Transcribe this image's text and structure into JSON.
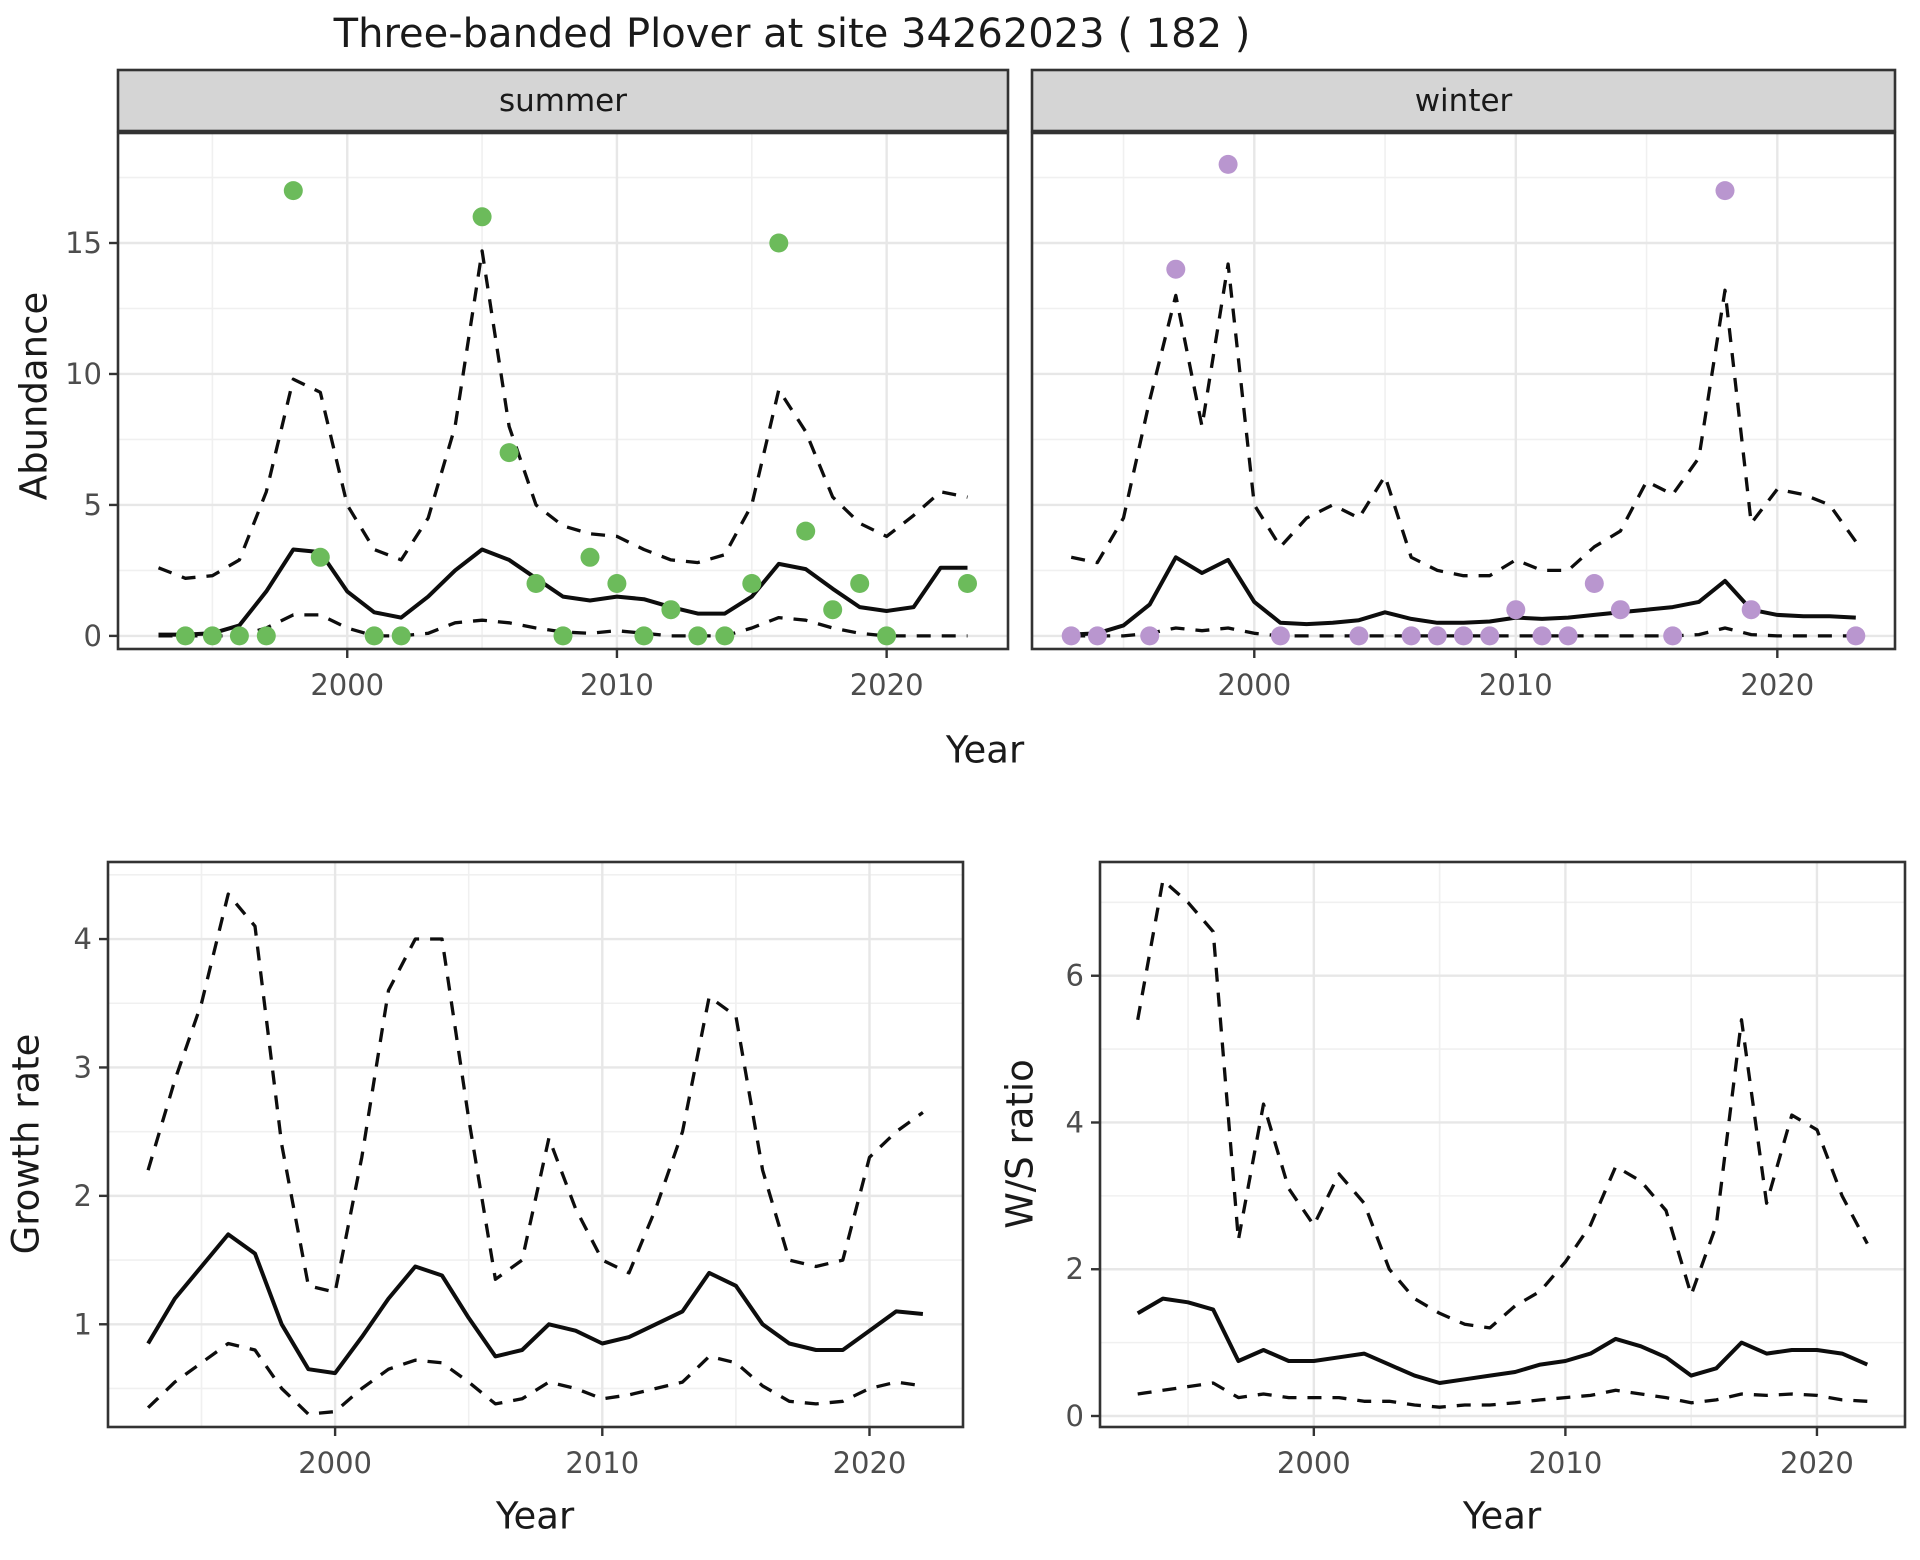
{
  "title": "Three-banded Plover at site 34262023 ( 182 )",
  "axis": {
    "x_label": "Year",
    "abundance_label": "Abundance",
    "growth_label": "Growth rate",
    "ws_label": "W/S ratio"
  },
  "colors": {
    "summer_point": "#6cbb5b",
    "winter_point": "#b996cf",
    "line": "#0d0d0d",
    "grid_major": "#e7e7e7",
    "grid_minor": "#f0f0f0",
    "panel_border": "#333333",
    "strip_bg": "#d5d5d5",
    "tick_label": "#4d4d4d",
    "strip_text": "#1a1a1a"
  },
  "chart_data": [
    {
      "id": "abundance_summer",
      "type": "line+scatter",
      "facet_label": "summer",
      "x_label": "Year",
      "y_label": "Abundance",
      "xlim": [
        1991.5,
        2024.5
      ],
      "ylim": [
        -0.5,
        19.2
      ],
      "xticks": [
        2000,
        2010,
        2020
      ],
      "yticks": [
        0,
        5,
        10,
        15
      ],
      "years": [
        1993,
        1994,
        1995,
        1996,
        1997,
        1998,
        1999,
        2000,
        2001,
        2002,
        2003,
        2004,
        2005,
        2006,
        2007,
        2008,
        2009,
        2010,
        2011,
        2012,
        2013,
        2014,
        2015,
        2016,
        2017,
        2018,
        2019,
        2020,
        2021,
        2022,
        2023
      ],
      "series": [
        {
          "name": "median",
          "style": "solid",
          "y": [
            0.05,
            0.05,
            0.1,
            0.4,
            1.7,
            3.3,
            3.2,
            1.7,
            0.9,
            0.7,
            1.5,
            2.5,
            3.3,
            2.9,
            2.2,
            1.5,
            1.35,
            1.5,
            1.4,
            1.1,
            0.85,
            0.85,
            1.5,
            2.75,
            2.55,
            1.8,
            1.1,
            0.95,
            1.1,
            2.6,
            2.6
          ]
        },
        {
          "name": "upper_ci",
          "style": "dashed",
          "y": [
            2.6,
            2.2,
            2.3,
            2.9,
            5.5,
            9.8,
            9.3,
            5.0,
            3.3,
            2.9,
            4.5,
            8.0,
            14.7,
            8.0,
            5.0,
            4.2,
            3.9,
            3.8,
            3.3,
            2.9,
            2.8,
            3.1,
            5.0,
            9.4,
            7.8,
            5.3,
            4.3,
            3.8,
            4.6,
            5.5,
            5.3
          ]
        },
        {
          "name": "lower_ci",
          "style": "dashed",
          "y": [
            0,
            0,
            0,
            0,
            0.3,
            0.8,
            0.8,
            0.3,
            0,
            0,
            0.1,
            0.5,
            0.6,
            0.5,
            0.3,
            0.15,
            0.1,
            0.2,
            0.1,
            0,
            0,
            0,
            0.3,
            0.7,
            0.6,
            0.3,
            0.1,
            0,
            0,
            0,
            0
          ]
        }
      ],
      "points": {
        "color_key": "summer_point",
        "x": [
          1994,
          1995,
          1996,
          1997,
          1998,
          1999,
          2001,
          2002,
          2005,
          2006,
          2007,
          2008,
          2009,
          2010,
          2011,
          2012,
          2013,
          2014,
          2015,
          2016,
          2017,
          2018,
          2019,
          2020,
          2023
        ],
        "y": [
          0,
          0,
          0,
          0,
          17,
          3,
          0,
          0,
          16,
          7,
          2,
          0,
          3,
          2,
          0,
          1,
          0,
          0,
          2,
          15,
          4,
          1,
          2,
          0,
          2
        ]
      }
    },
    {
      "id": "abundance_winter",
      "type": "line+scatter",
      "facet_label": "winter",
      "x_label": "Year",
      "y_label": "Abundance",
      "xlim": [
        1991.5,
        2024.5
      ],
      "ylim": [
        -0.5,
        19.2
      ],
      "xticks": [
        2000,
        2010,
        2020
      ],
      "yticks": [
        0,
        5,
        10,
        15
      ],
      "years": [
        1993,
        1994,
        1995,
        1996,
        1997,
        1998,
        1999,
        2000,
        2001,
        2002,
        2003,
        2004,
        2005,
        2006,
        2007,
        2008,
        2009,
        2010,
        2011,
        2012,
        2013,
        2014,
        2015,
        2016,
        2017,
        2018,
        2019,
        2020,
        2021,
        2022,
        2023
      ],
      "series": [
        {
          "name": "median",
          "style": "solid",
          "y": [
            0.05,
            0.1,
            0.4,
            1.2,
            3.0,
            2.4,
            2.9,
            1.3,
            0.5,
            0.45,
            0.5,
            0.6,
            0.9,
            0.65,
            0.5,
            0.5,
            0.55,
            0.7,
            0.65,
            0.7,
            0.8,
            0.9,
            1.0,
            1.1,
            1.3,
            2.1,
            1.0,
            0.8,
            0.75,
            0.75,
            0.7
          ]
        },
        {
          "name": "upper_ci",
          "style": "dashed",
          "y": [
            3.0,
            2.8,
            4.5,
            9.0,
            13.0,
            8.0,
            14.2,
            5.0,
            3.4,
            4.5,
            5.0,
            4.5,
            6.1,
            3.0,
            2.5,
            2.3,
            2.3,
            2.9,
            2.5,
            2.5,
            3.4,
            4.0,
            5.9,
            5.4,
            6.8,
            13.2,
            4.3,
            5.6,
            5.4,
            5.0,
            3.6
          ]
        },
        {
          "name": "lower_ci",
          "style": "dashed",
          "y": [
            0,
            0,
            0,
            0.1,
            0.3,
            0.2,
            0.3,
            0.1,
            0,
            0,
            0,
            0,
            0,
            0,
            0,
            0,
            0,
            0,
            0,
            0,
            0,
            0,
            0,
            0,
            0.05,
            0.3,
            0.05,
            0,
            0,
            0,
            0
          ]
        }
      ],
      "points": {
        "color_key": "winter_point",
        "x": [
          1993,
          1994,
          1996,
          1997,
          1999,
          2001,
          2004,
          2006,
          2007,
          2008,
          2009,
          2010,
          2011,
          2012,
          2013,
          2014,
          2016,
          2018,
          2019,
          2023
        ],
        "y": [
          0,
          0,
          0,
          14,
          18,
          0,
          0,
          0,
          0,
          0,
          0,
          1,
          0,
          0,
          2,
          1,
          0,
          17,
          1,
          0
        ]
      }
    },
    {
      "id": "growth_rate",
      "type": "line",
      "facet_label": null,
      "x_label": "Year",
      "y_label": "Growth rate",
      "xlim": [
        1991.5,
        2023.5
      ],
      "ylim": [
        0.2,
        4.6
      ],
      "xticks": [
        2000,
        2010,
        2020
      ],
      "yticks": [
        1,
        2,
        3,
        4
      ],
      "years": [
        1993,
        1994,
        1995,
        1996,
        1997,
        1998,
        1999,
        2000,
        2001,
        2002,
        2003,
        2004,
        2005,
        2006,
        2007,
        2008,
        2009,
        2010,
        2011,
        2012,
        2013,
        2014,
        2015,
        2016,
        2017,
        2018,
        2019,
        2020,
        2021,
        2022
      ],
      "series": [
        {
          "name": "median",
          "style": "solid",
          "y": [
            0.85,
            1.2,
            1.45,
            1.7,
            1.55,
            1.0,
            0.65,
            0.62,
            0.9,
            1.2,
            1.45,
            1.38,
            1.05,
            0.75,
            0.8,
            1.0,
            0.95,
            0.85,
            0.9,
            1.0,
            1.1,
            1.4,
            1.3,
            1.0,
            0.85,
            0.8,
            0.8,
            0.95,
            1.1,
            1.08
          ]
        },
        {
          "name": "upper_ci",
          "style": "dashed",
          "y": [
            2.2,
            2.9,
            3.5,
            4.35,
            4.1,
            2.4,
            1.3,
            1.25,
            2.3,
            3.6,
            4.0,
            4.0,
            2.6,
            1.35,
            1.5,
            2.45,
            1.9,
            1.5,
            1.4,
            1.9,
            2.5,
            3.55,
            3.4,
            2.2,
            1.5,
            1.45,
            1.5,
            2.3,
            2.5,
            2.65
          ]
        },
        {
          "name": "lower_ci",
          "style": "dashed",
          "y": [
            0.35,
            0.55,
            0.7,
            0.85,
            0.8,
            0.5,
            0.3,
            0.32,
            0.5,
            0.65,
            0.72,
            0.7,
            0.55,
            0.38,
            0.42,
            0.55,
            0.5,
            0.42,
            0.45,
            0.5,
            0.55,
            0.75,
            0.7,
            0.52,
            0.4,
            0.38,
            0.4,
            0.5,
            0.55,
            0.52
          ]
        }
      ]
    },
    {
      "id": "ws_ratio",
      "type": "line",
      "facet_label": null,
      "x_label": "Year",
      "y_label": "W/S ratio",
      "xlim": [
        1991.5,
        2023.5
      ],
      "ylim": [
        -0.15,
        7.55
      ],
      "xticks": [
        2000,
        2010,
        2020
      ],
      "yticks": [
        0,
        2,
        4,
        6
      ],
      "years": [
        1993,
        1994,
        1995,
        1996,
        1997,
        1998,
        1999,
        2000,
        2001,
        2002,
        2003,
        2004,
        2005,
        2006,
        2007,
        2008,
        2009,
        2010,
        2011,
        2012,
        2013,
        2014,
        2015,
        2016,
        2017,
        2018,
        2019,
        2020,
        2021,
        2022
      ],
      "series": [
        {
          "name": "median",
          "style": "solid",
          "y": [
            1.4,
            1.6,
            1.55,
            1.45,
            0.75,
            0.9,
            0.75,
            0.75,
            0.8,
            0.85,
            0.7,
            0.55,
            0.45,
            0.5,
            0.55,
            0.6,
            0.7,
            0.75,
            0.85,
            1.05,
            0.95,
            0.8,
            0.55,
            0.65,
            1.0,
            0.85,
            0.9,
            0.9,
            0.85,
            0.7
          ]
        },
        {
          "name": "upper_ci",
          "style": "dashed",
          "y": [
            5.4,
            7.3,
            7.0,
            6.6,
            2.4,
            4.25,
            3.1,
            2.6,
            3.3,
            2.9,
            2.0,
            1.6,
            1.4,
            1.25,
            1.2,
            1.5,
            1.7,
            2.1,
            2.6,
            3.4,
            3.2,
            2.8,
            1.65,
            2.6,
            5.4,
            2.9,
            4.1,
            3.9,
            3.0,
            2.35
          ]
        },
        {
          "name": "lower_ci",
          "style": "dashed",
          "y": [
            0.3,
            0.35,
            0.4,
            0.45,
            0.25,
            0.3,
            0.25,
            0.25,
            0.25,
            0.2,
            0.2,
            0.15,
            0.12,
            0.15,
            0.15,
            0.18,
            0.22,
            0.25,
            0.28,
            0.35,
            0.3,
            0.25,
            0.18,
            0.22,
            0.3,
            0.28,
            0.3,
            0.28,
            0.22,
            0.2
          ]
        }
      ]
    }
  ]
}
